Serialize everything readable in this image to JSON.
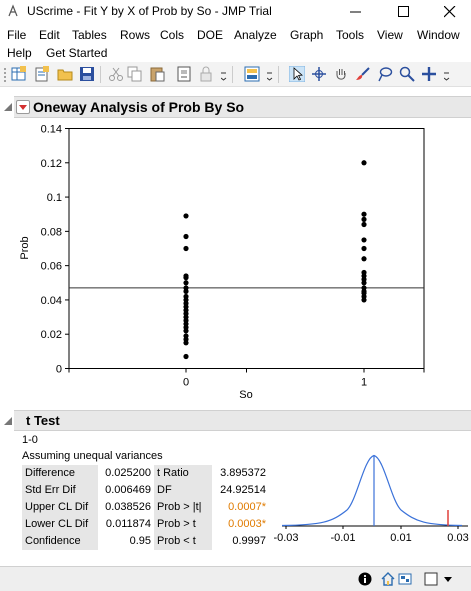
{
  "window": {
    "title": "UScrime - Fit Y by X of Prob by So - JMP Trial"
  },
  "menu": {
    "items": [
      "File",
      "Edit",
      "Tables",
      "Rows",
      "Cols",
      "DOE",
      "Analyze",
      "Graph",
      "Tools",
      "View",
      "Window",
      "Help",
      "Get Started"
    ]
  },
  "toolbar": {
    "icons": [
      "new-data-table-icon",
      "new-script-icon",
      "open-icon",
      "save-icon",
      "cut-icon",
      "copy-icon",
      "paste-icon",
      "journal-icon",
      "lock-icon",
      "layout-icon",
      "arrow-icon",
      "crosshair-icon",
      "grabber-icon",
      "brush-icon",
      "lasso-icon",
      "magnifier-icon",
      "add-icon"
    ]
  },
  "oneway": {
    "title": "Oneway Analysis of Prob By So"
  },
  "chart_data": {
    "type": "scatter",
    "xlabel": "So",
    "ylabel": "Prob",
    "categories": [
      "0",
      "1"
    ],
    "ylim": [
      0,
      0.14
    ],
    "y_ticks": [
      "0",
      "0.02",
      "0.04",
      "0.06",
      "0.08",
      "0.1",
      "0.12",
      "0.14"
    ],
    "grand_mean": 0.047,
    "series": [
      {
        "category": "0",
        "values": [
          0.089,
          0.077,
          0.07,
          0.054,
          0.053,
          0.05,
          0.047,
          0.045,
          0.042,
          0.04,
          0.038,
          0.036,
          0.034,
          0.032,
          0.03,
          0.028,
          0.026,
          0.024,
          0.022,
          0.019,
          0.017,
          0.015,
          0.007
        ]
      },
      {
        "category": "1",
        "values": [
          0.12,
          0.09,
          0.087,
          0.084,
          0.075,
          0.07,
          0.064,
          0.056,
          0.054,
          0.052,
          0.05,
          0.047,
          0.045,
          0.044,
          0.042,
          0.04
        ]
      }
    ]
  },
  "ttest": {
    "title": "t Test",
    "contrast": "1-0",
    "assumption": "Assuming unequal variances",
    "rows": [
      {
        "label": "Difference",
        "value": "0.025200",
        "stat_label": "t Ratio",
        "stat_value": "3.895372"
      },
      {
        "label": "Std Err Dif",
        "value": "0.006469",
        "stat_label": "DF",
        "stat_value": "24.92514"
      },
      {
        "label": "Upper CL Dif",
        "value": "0.038526",
        "stat_label": "Prob > |t|",
        "stat_value": "0.0007*"
      },
      {
        "label": "Lower CL Dif",
        "value": "0.011874",
        "stat_label": "Prob > t",
        "stat_value": "0.0003*"
      },
      {
        "label": "Confidence",
        "value": "0.95",
        "stat_label": "Prob < t",
        "stat_value": "0.9997"
      }
    ],
    "dist_ticks": [
      "-0.03",
      "-0.01",
      "0.01",
      "0.03"
    ]
  },
  "colors": {
    "significant": "#e07b00",
    "curve": "#3b72d9",
    "marker": "#e0403b"
  },
  "statusbar": {
    "icons": [
      "info-icon",
      "home-icon",
      "layout-toggle-icon",
      "checkbox-icon",
      "dropdown-icon"
    ]
  }
}
